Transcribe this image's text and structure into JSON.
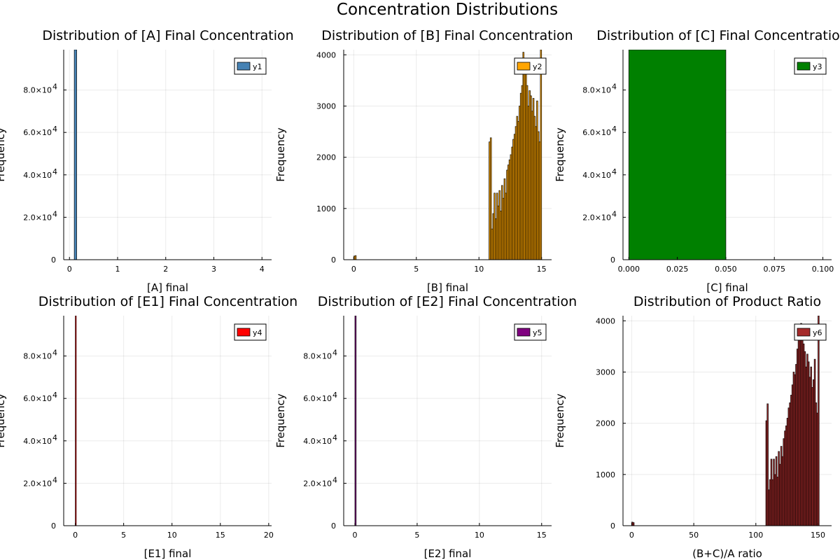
{
  "figure": {
    "title": "Concentration Distributions"
  },
  "chart_data": [
    {
      "type": "bar",
      "title": "Distribution of [A] Final Concentration",
      "xlabel": "[A] final",
      "ylabel": "Frequency",
      "xlim": [
        -0.12,
        4.2
      ],
      "ylim": [
        0,
        99000
      ],
      "xticks": [
        0,
        1,
        2,
        3,
        4
      ],
      "yticks": [
        0,
        20000,
        40000,
        60000,
        80000
      ],
      "ytick_labels": [
        [
          "0",
          ""
        ],
        [
          "2.0×10",
          "4"
        ],
        [
          "4.0×10",
          "4"
        ],
        [
          "6.0×10",
          "4"
        ],
        [
          "8.0×10",
          "4"
        ]
      ],
      "legend": {
        "label": "y1",
        "position": "top-right"
      },
      "color": "#4682b4",
      "bins": [
        [
          0.1,
          0.15,
          99000
        ]
      ]
    },
    {
      "type": "bar",
      "title": "Distribution of [B] Final Concentration",
      "xlabel": "[B] final",
      "ylabel": "Frequency",
      "xlim": [
        -0.8,
        15.8
      ],
      "ylim": [
        0,
        4100
      ],
      "xticks": [
        0,
        5,
        10,
        15
      ],
      "yticks": [
        0,
        1000,
        2000,
        3000,
        4000
      ],
      "ytick_labels": [
        [
          "0",
          ""
        ],
        [
          "1000",
          ""
        ],
        [
          "2000",
          ""
        ],
        [
          "3000",
          ""
        ],
        [
          "4000",
          ""
        ]
      ],
      "legend": {
        "label": "y2",
        "position": "top-right"
      },
      "color": "#ffa500",
      "bins": [
        [
          0.0,
          0.1,
          70
        ],
        [
          0.1,
          0.2,
          80
        ],
        [
          10.8,
          10.9,
          2300
        ],
        [
          10.9,
          11.0,
          2380
        ],
        [
          11.0,
          11.1,
          600
        ],
        [
          11.1,
          11.2,
          900
        ],
        [
          11.2,
          11.3,
          1300
        ],
        [
          11.3,
          11.4,
          800
        ],
        [
          11.4,
          11.5,
          1300
        ],
        [
          11.5,
          11.6,
          1050
        ],
        [
          11.6,
          11.7,
          1350
        ],
        [
          11.7,
          11.8,
          950
        ],
        [
          11.8,
          11.9,
          1450
        ],
        [
          11.9,
          12.0,
          1200
        ],
        [
          12.0,
          12.1,
          1580
        ],
        [
          12.1,
          12.2,
          1300
        ],
        [
          12.2,
          12.3,
          1750
        ],
        [
          12.3,
          12.4,
          1850
        ],
        [
          12.4,
          12.5,
          1950
        ],
        [
          12.5,
          12.6,
          2050
        ],
        [
          12.6,
          12.7,
          2200
        ],
        [
          12.7,
          12.8,
          2350
        ],
        [
          12.8,
          12.9,
          2450
        ],
        [
          12.9,
          13.0,
          2600
        ],
        [
          13.0,
          13.1,
          2800
        ],
        [
          13.1,
          13.2,
          2700
        ],
        [
          13.2,
          13.3,
          3000
        ],
        [
          13.3,
          13.4,
          3250
        ],
        [
          13.4,
          13.5,
          3400
        ],
        [
          13.5,
          13.6,
          4050
        ],
        [
          13.6,
          13.7,
          3900
        ],
        [
          13.7,
          13.8,
          3650
        ],
        [
          13.8,
          13.9,
          3400
        ],
        [
          13.9,
          14.0,
          3000
        ],
        [
          14.0,
          14.1,
          3300
        ],
        [
          14.1,
          14.2,
          3200
        ],
        [
          14.2,
          14.3,
          2900
        ],
        [
          14.3,
          14.4,
          3150
        ],
        [
          14.4,
          14.5,
          2800
        ],
        [
          14.5,
          14.6,
          2600
        ],
        [
          14.6,
          14.7,
          3100
        ],
        [
          14.7,
          14.8,
          2500
        ],
        [
          14.8,
          14.9,
          2300
        ],
        [
          14.9,
          15.0,
          4100
        ]
      ]
    },
    {
      "type": "bar",
      "title": "Distribution of [C] Final Concentration",
      "xlabel": "[C] final",
      "ylabel": "Frequency",
      "xlim": [
        -0.003,
        0.1045
      ],
      "ylim": [
        0,
        99000
      ],
      "xticks": [
        0,
        0.025,
        0.05,
        0.075,
        0.1
      ],
      "xtick_labels": [
        "0.000",
        "0.025",
        "0.050",
        "0.075",
        "0.100"
      ],
      "yticks": [
        0,
        20000,
        40000,
        60000,
        80000
      ],
      "ytick_labels": [
        [
          "0",
          ""
        ],
        [
          "2.0×10",
          "4"
        ],
        [
          "4.0×10",
          "4"
        ],
        [
          "6.0×10",
          "4"
        ],
        [
          "8.0×10",
          "4"
        ]
      ],
      "legend": {
        "label": "y3",
        "position": "top-right"
      },
      "color": "#008000",
      "bins": [
        [
          0,
          0.05,
          99000
        ]
      ]
    },
    {
      "type": "bar",
      "title": "Distribution of [E1] Final Concentration",
      "xlabel": "[E1] final",
      "ylabel": "Frequency",
      "xlim": [
        -1.2,
        20.3
      ],
      "ylim": [
        0,
        99000
      ],
      "xticks": [
        0,
        5,
        10,
        15,
        20
      ],
      "yticks": [
        0,
        20000,
        40000,
        60000,
        80000
      ],
      "ytick_labels": [
        [
          "0",
          ""
        ],
        [
          "2.0×10",
          "4"
        ],
        [
          "4.0×10",
          "4"
        ],
        [
          "6.0×10",
          "4"
        ],
        [
          "8.0×10",
          "4"
        ]
      ],
      "legend": {
        "label": "y4",
        "position": "top-right"
      },
      "color": "#ff0000",
      "bins": [
        [
          0,
          0.1,
          99000
        ]
      ]
    },
    {
      "type": "bar",
      "title": "Distribution of [E2] Final Concentration",
      "xlabel": "[E2] final",
      "ylabel": "Frequency",
      "xlim": [
        -0.9,
        15.8
      ],
      "ylim": [
        0,
        99000
      ],
      "xticks": [
        0,
        5,
        10,
        15
      ],
      "yticks": [
        0,
        20000,
        40000,
        60000,
        80000
      ],
      "ytick_labels": [
        [
          "0",
          ""
        ],
        [
          "2.0×10",
          "4"
        ],
        [
          "4.0×10",
          "4"
        ],
        [
          "6.0×10",
          "4"
        ],
        [
          "8.0×10",
          "4"
        ]
      ],
      "legend": {
        "label": "y5",
        "position": "top-right"
      },
      "color": "#800080",
      "bins": [
        [
          0,
          0.1,
          99000
        ]
      ]
    },
    {
      "type": "bar",
      "title": "Distribution of Product Ratio",
      "xlabel": "(B+C)/A ratio",
      "ylabel": "Frequency",
      "xlim": [
        -7,
        161
      ],
      "ylim": [
        0,
        4100
      ],
      "xticks": [
        0,
        50,
        100,
        150
      ],
      "yticks": [
        0,
        1000,
        2000,
        3000,
        4000
      ],
      "ytick_labels": [
        [
          "0",
          ""
        ],
        [
          "1000",
          ""
        ],
        [
          "2000",
          ""
        ],
        [
          "3000",
          ""
        ],
        [
          "4000",
          ""
        ]
      ],
      "legend": {
        "label": "y6",
        "position": "top-right"
      },
      "color": "#a52a2a",
      "bins": [
        [
          0,
          1,
          70
        ],
        [
          1,
          2,
          60
        ],
        [
          108,
          109,
          2050
        ],
        [
          109,
          110,
          2380
        ],
        [
          110,
          111,
          700
        ],
        [
          111,
          112,
          900
        ],
        [
          112,
          113,
          1300
        ],
        [
          113,
          114,
          900
        ],
        [
          114,
          115,
          1300
        ],
        [
          115,
          116,
          1000
        ],
        [
          116,
          117,
          1350
        ],
        [
          117,
          118,
          950
        ],
        [
          118,
          119,
          1450
        ],
        [
          119,
          120,
          1200
        ],
        [
          120,
          121,
          1550
        ],
        [
          121,
          122,
          1350
        ],
        [
          122,
          123,
          1700
        ],
        [
          123,
          124,
          1850
        ],
        [
          124,
          125,
          1950
        ],
        [
          125,
          126,
          2100
        ],
        [
          126,
          127,
          2300
        ],
        [
          127,
          128,
          2400
        ],
        [
          128,
          129,
          2550
        ],
        [
          129,
          130,
          2750
        ],
        [
          130,
          131,
          3000
        ],
        [
          131,
          132,
          2950
        ],
        [
          132,
          133,
          3150
        ],
        [
          133,
          134,
          3450
        ],
        [
          134,
          135,
          3700
        ],
        [
          135,
          136,
          3800
        ],
        [
          136,
          137,
          3950
        ],
        [
          137,
          138,
          3650
        ],
        [
          138,
          139,
          3550
        ],
        [
          139,
          140,
          3400
        ],
        [
          140,
          141,
          3100
        ],
        [
          141,
          142,
          3350
        ],
        [
          142,
          143,
          3200
        ],
        [
          143,
          144,
          2900
        ],
        [
          144,
          145,
          3100
        ],
        [
          145,
          146,
          2700
        ],
        [
          146,
          147,
          2850
        ],
        [
          147,
          148,
          3250
        ],
        [
          148,
          149,
          2400
        ],
        [
          149,
          150,
          2200
        ],
        [
          150,
          151,
          4100
        ]
      ]
    }
  ]
}
